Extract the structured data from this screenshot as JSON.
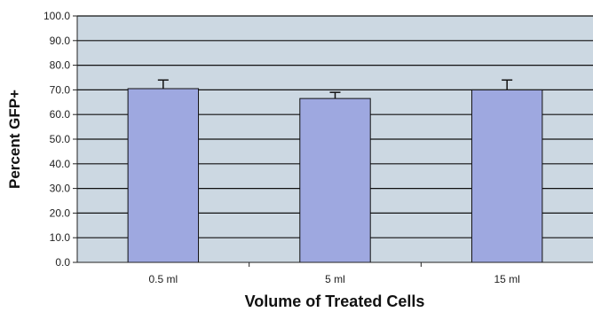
{
  "chart_data": {
    "type": "bar",
    "title": "",
    "xlabel": "Volume of Treated Cells",
    "ylabel": "Percent GFP+",
    "categories": [
      "0.5 ml",
      "5 ml",
      "15 ml"
    ],
    "values": [
      70.5,
      66.5,
      70.0
    ],
    "errors": [
      3.5,
      2.5,
      4.0
    ],
    "ylim": [
      0,
      100
    ],
    "yticks": [
      0,
      10,
      20,
      30,
      40,
      50,
      60,
      70,
      80,
      90,
      100
    ],
    "ytick_labels": [
      "0.0",
      "10.0",
      "20.0",
      "30.0",
      "40.0",
      "50.0",
      "60.0",
      "70.0",
      "80.0",
      "90.0",
      "100.0"
    ],
    "grid": true,
    "legend": "none",
    "colors": {
      "bar": "#9ea8e0",
      "bar_border": "#111111",
      "plot_background": "#ccd8e2",
      "gridline": "#111111",
      "error_bar": "#111111"
    }
  }
}
